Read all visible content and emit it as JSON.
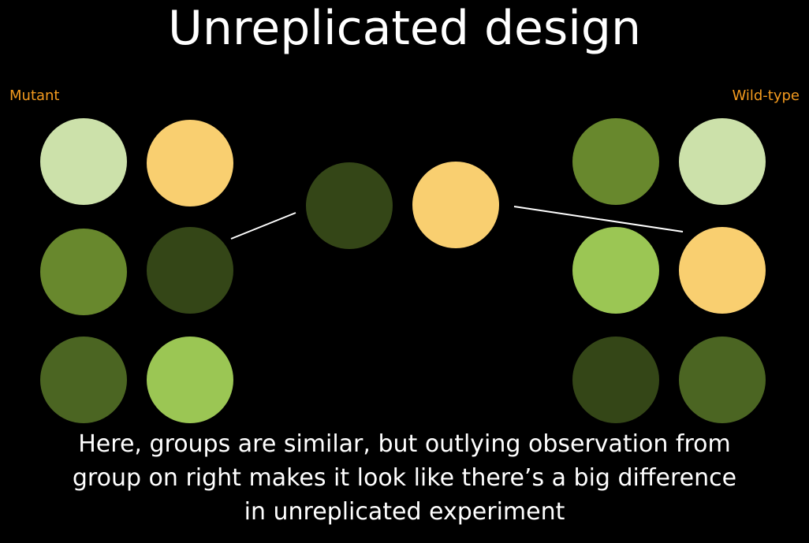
{
  "title": "Unreplicated design",
  "groups": {
    "left_label": "Mutant",
    "right_label": "Wild-type"
  },
  "colors": {
    "background": "#000000",
    "label_orange": "#f39a1e",
    "pale_green": "#cce1aa",
    "peach": "#f9cf70",
    "olive_green": "#68882d",
    "dark_green": "#344617",
    "moss_green": "#4b6522",
    "lime_green": "#9bc654",
    "connector": "#ffffff"
  },
  "circles": {
    "mutant": [
      "pale_green",
      "peach",
      "olive_green",
      "dark_green",
      "moss_green",
      "lime_green"
    ],
    "wildtype": [
      "olive_green",
      "pale_green",
      "lime_green",
      "peach",
      "dark_green",
      "moss_green"
    ],
    "sampled_mutant": "dark_green",
    "sampled_wildtype": "peach"
  },
  "caption": {
    "line1": "Here, groups are similar, but outlying observation from",
    "line2": "group on right makes it look like there’s a big difference",
    "line3": "in unreplicated experiment"
  }
}
